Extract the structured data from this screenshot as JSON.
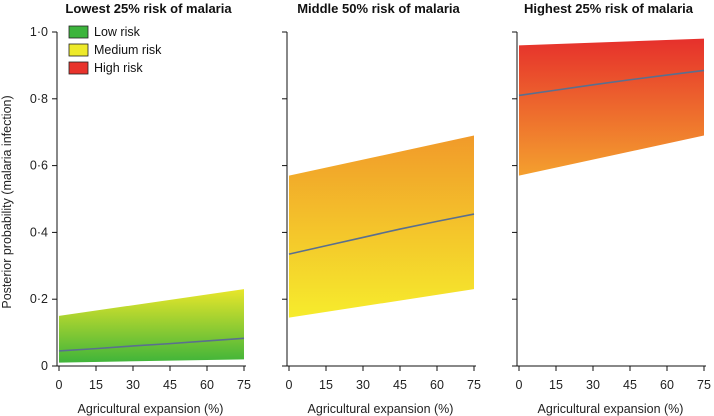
{
  "chart_data": {
    "type": "area",
    "ylabel": "Posterior probability (malaria infection)",
    "ylim": [
      0,
      1
    ],
    "xlim": [
      0,
      75
    ],
    "yticks": [
      0,
      0.2,
      0.4,
      0.6,
      0.8,
      1.0
    ],
    "ytick_labels": [
      "0",
      "0·2",
      "0·4",
      "0·6",
      "0·8",
      "1·0"
    ],
    "xticks": [
      0,
      15,
      30,
      45,
      60,
      75
    ],
    "xtick_labels": [
      "0",
      "15",
      "30",
      "45",
      "60",
      "75"
    ],
    "legend": {
      "placement": "top-left",
      "entries": [
        {
          "label": "Low risk",
          "color": "#3cb43c"
        },
        {
          "label": "Medium risk",
          "color": "#eeea2a"
        },
        {
          "label": "High risk",
          "color": "#e8332c"
        }
      ]
    },
    "panels": [
      {
        "title": "Lowest 25% risk of malaria",
        "xlabel": "Agricultural expansion (%)",
        "band_lower": [
          [
            0,
            0.01
          ],
          [
            75,
            0.02
          ]
        ],
        "band_upper": [
          [
            0,
            0.15
          ],
          [
            75,
            0.23
          ]
        ],
        "median": [
          [
            0,
            0.045
          ],
          [
            15,
            0.052
          ],
          [
            30,
            0.06
          ],
          [
            45,
            0.067
          ],
          [
            60,
            0.075
          ],
          [
            75,
            0.083
          ]
        ],
        "gradient": [
          "#e8e62a",
          "#3fb43a"
        ]
      },
      {
        "title": "Middle 50% risk of malaria",
        "xlabel": "Agricultural expansion (%)",
        "band_lower": [
          [
            0,
            0.145
          ],
          [
            75,
            0.23
          ]
        ],
        "band_upper": [
          [
            0,
            0.57
          ],
          [
            75,
            0.69
          ]
        ],
        "median": [
          [
            0,
            0.335
          ],
          [
            15,
            0.36
          ],
          [
            30,
            0.385
          ],
          [
            45,
            0.41
          ],
          [
            60,
            0.433
          ],
          [
            75,
            0.455
          ]
        ],
        "gradient": [
          "#f19a2a",
          "#f6ec2c"
        ]
      },
      {
        "title": "Highest 25% risk of malaria",
        "xlabel": "Agricultural expansion (%)",
        "band_lower": [
          [
            0,
            0.57
          ],
          [
            75,
            0.69
          ]
        ],
        "band_upper": [
          [
            0,
            0.96
          ],
          [
            75,
            0.98
          ]
        ],
        "median": [
          [
            0,
            0.81
          ],
          [
            15,
            0.826
          ],
          [
            30,
            0.842
          ],
          [
            45,
            0.857
          ],
          [
            60,
            0.871
          ],
          [
            75,
            0.885
          ]
        ],
        "gradient": [
          "#e6302c",
          "#f4a02e"
        ]
      }
    ],
    "colors": {
      "median_line": "#5a6f8f",
      "axis": "#111111"
    }
  }
}
